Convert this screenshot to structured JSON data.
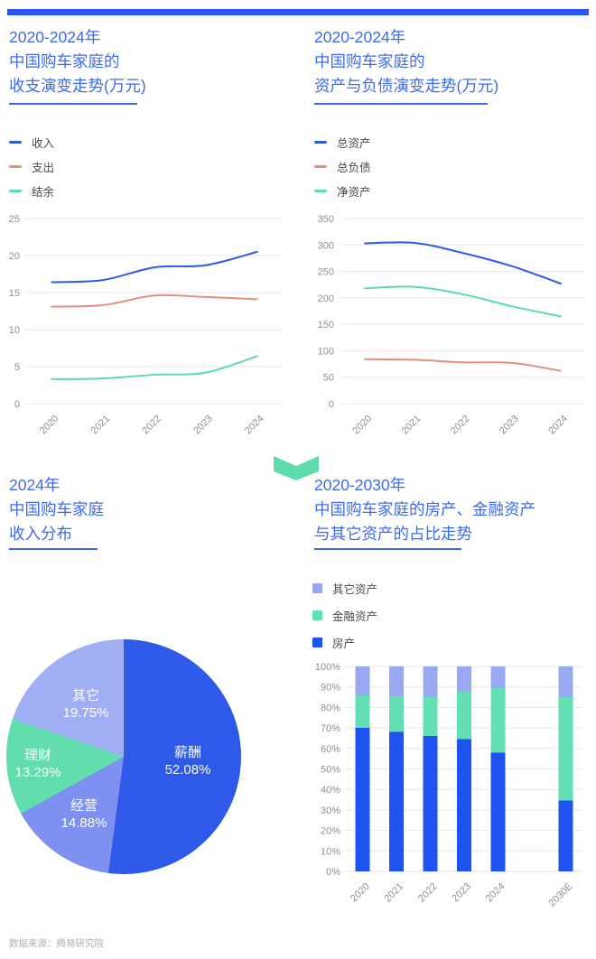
{
  "colors": {
    "accent_blue": "#3E6AF2",
    "top_bar": "#2A56F5",
    "grid_line": "#E8E8E8",
    "axis_text": "#909090",
    "legend_text": "#4A4A4A",
    "footer_text": "#B0B0B0",
    "chevron": "#5FDCAC"
  },
  "chart_data": [
    {
      "id": "income-expense-trend",
      "type": "line",
      "title_lines": [
        "2020-2024年",
        "中国购车家庭的",
        "收支演变走势(万元)"
      ],
      "categories": [
        "2020",
        "2021",
        "2022",
        "2023",
        "2024"
      ],
      "series": [
        {
          "name": "收入",
          "color": "#2E59E8",
          "values": [
            16.4,
            16.7,
            18.4,
            18.7,
            20.5
          ]
        },
        {
          "name": "支出",
          "color": "#E88E7D",
          "values": [
            13.1,
            13.3,
            14.6,
            14.4,
            14.1
          ]
        },
        {
          "name": "结余",
          "color": "#5BDCB0",
          "values": [
            3.3,
            3.4,
            3.9,
            4.2,
            6.4
          ]
        }
      ],
      "ylim": [
        0,
        25
      ],
      "ytick_step": 5,
      "grid": true,
      "legend_position": "above-left"
    },
    {
      "id": "assets-liabilities-trend",
      "type": "line",
      "title_lines": [
        "2020-2024年",
        "中国购车家庭的",
        "资产与负债演变走势(万元)"
      ],
      "categories": [
        "2020",
        "2021",
        "2022",
        "2023",
        "2024"
      ],
      "series": [
        {
          "name": "总资产",
          "color": "#2E59E8",
          "values": [
            303,
            304,
            285,
            260,
            227
          ]
        },
        {
          "name": "总负债",
          "color": "#E88E7D",
          "values": [
            84,
            83,
            78,
            77,
            62
          ]
        },
        {
          "name": "净资产",
          "color": "#5BDCB0",
          "values": [
            218,
            221,
            207,
            184,
            165
          ]
        }
      ],
      "ylim": [
        0,
        350
      ],
      "ytick_step": 50,
      "grid": true,
      "legend_position": "above-left"
    },
    {
      "id": "income-distribution",
      "type": "pie",
      "title_lines": [
        "2024年",
        "中国购车家庭",
        "收入分布"
      ],
      "slices": [
        {
          "name": "薪酬",
          "value": 52.08,
          "color": "#2E59E9"
        },
        {
          "name": "经营",
          "value": 14.88,
          "color": "#7E90F0"
        },
        {
          "name": "理财",
          "value": 13.29,
          "color": "#62DEAE"
        },
        {
          "name": "其它",
          "value": 19.75,
          "color": "#A0AEF3"
        }
      ],
      "start_angle_deg": 0,
      "label_format": "{name} {value}%"
    },
    {
      "id": "asset-composition-outlook",
      "type": "stacked-bar",
      "title_lines": [
        "2020-2030年",
        "中国购车家庭的房产、金融资产",
        "与其它资产的占比走势"
      ],
      "categories": [
        "2020",
        "2021",
        "2022",
        "2023",
        "2024",
        "2030E"
      ],
      "series": [
        {
          "name": "房产",
          "color": "#1F53F0",
          "values": [
            70,
            68,
            66,
            64.5,
            58,
            34.5
          ]
        },
        {
          "name": "金融资产",
          "color": "#62DFB3",
          "values": [
            16,
            17.5,
            19,
            23.5,
            31.5,
            50.5
          ]
        },
        {
          "name": "其它资产",
          "color": "#99A9F1",
          "values": [
            14,
            14.5,
            15,
            12,
            10.5,
            15
          ]
        }
      ],
      "ylim": [
        0,
        100
      ],
      "ytick_step": 10,
      "ytick_suffix": "%",
      "legend_order_display": [
        "其它资产",
        "金融资产",
        "房产"
      ]
    }
  ],
  "footer": {
    "source": "数据来源：腾易研究院"
  }
}
